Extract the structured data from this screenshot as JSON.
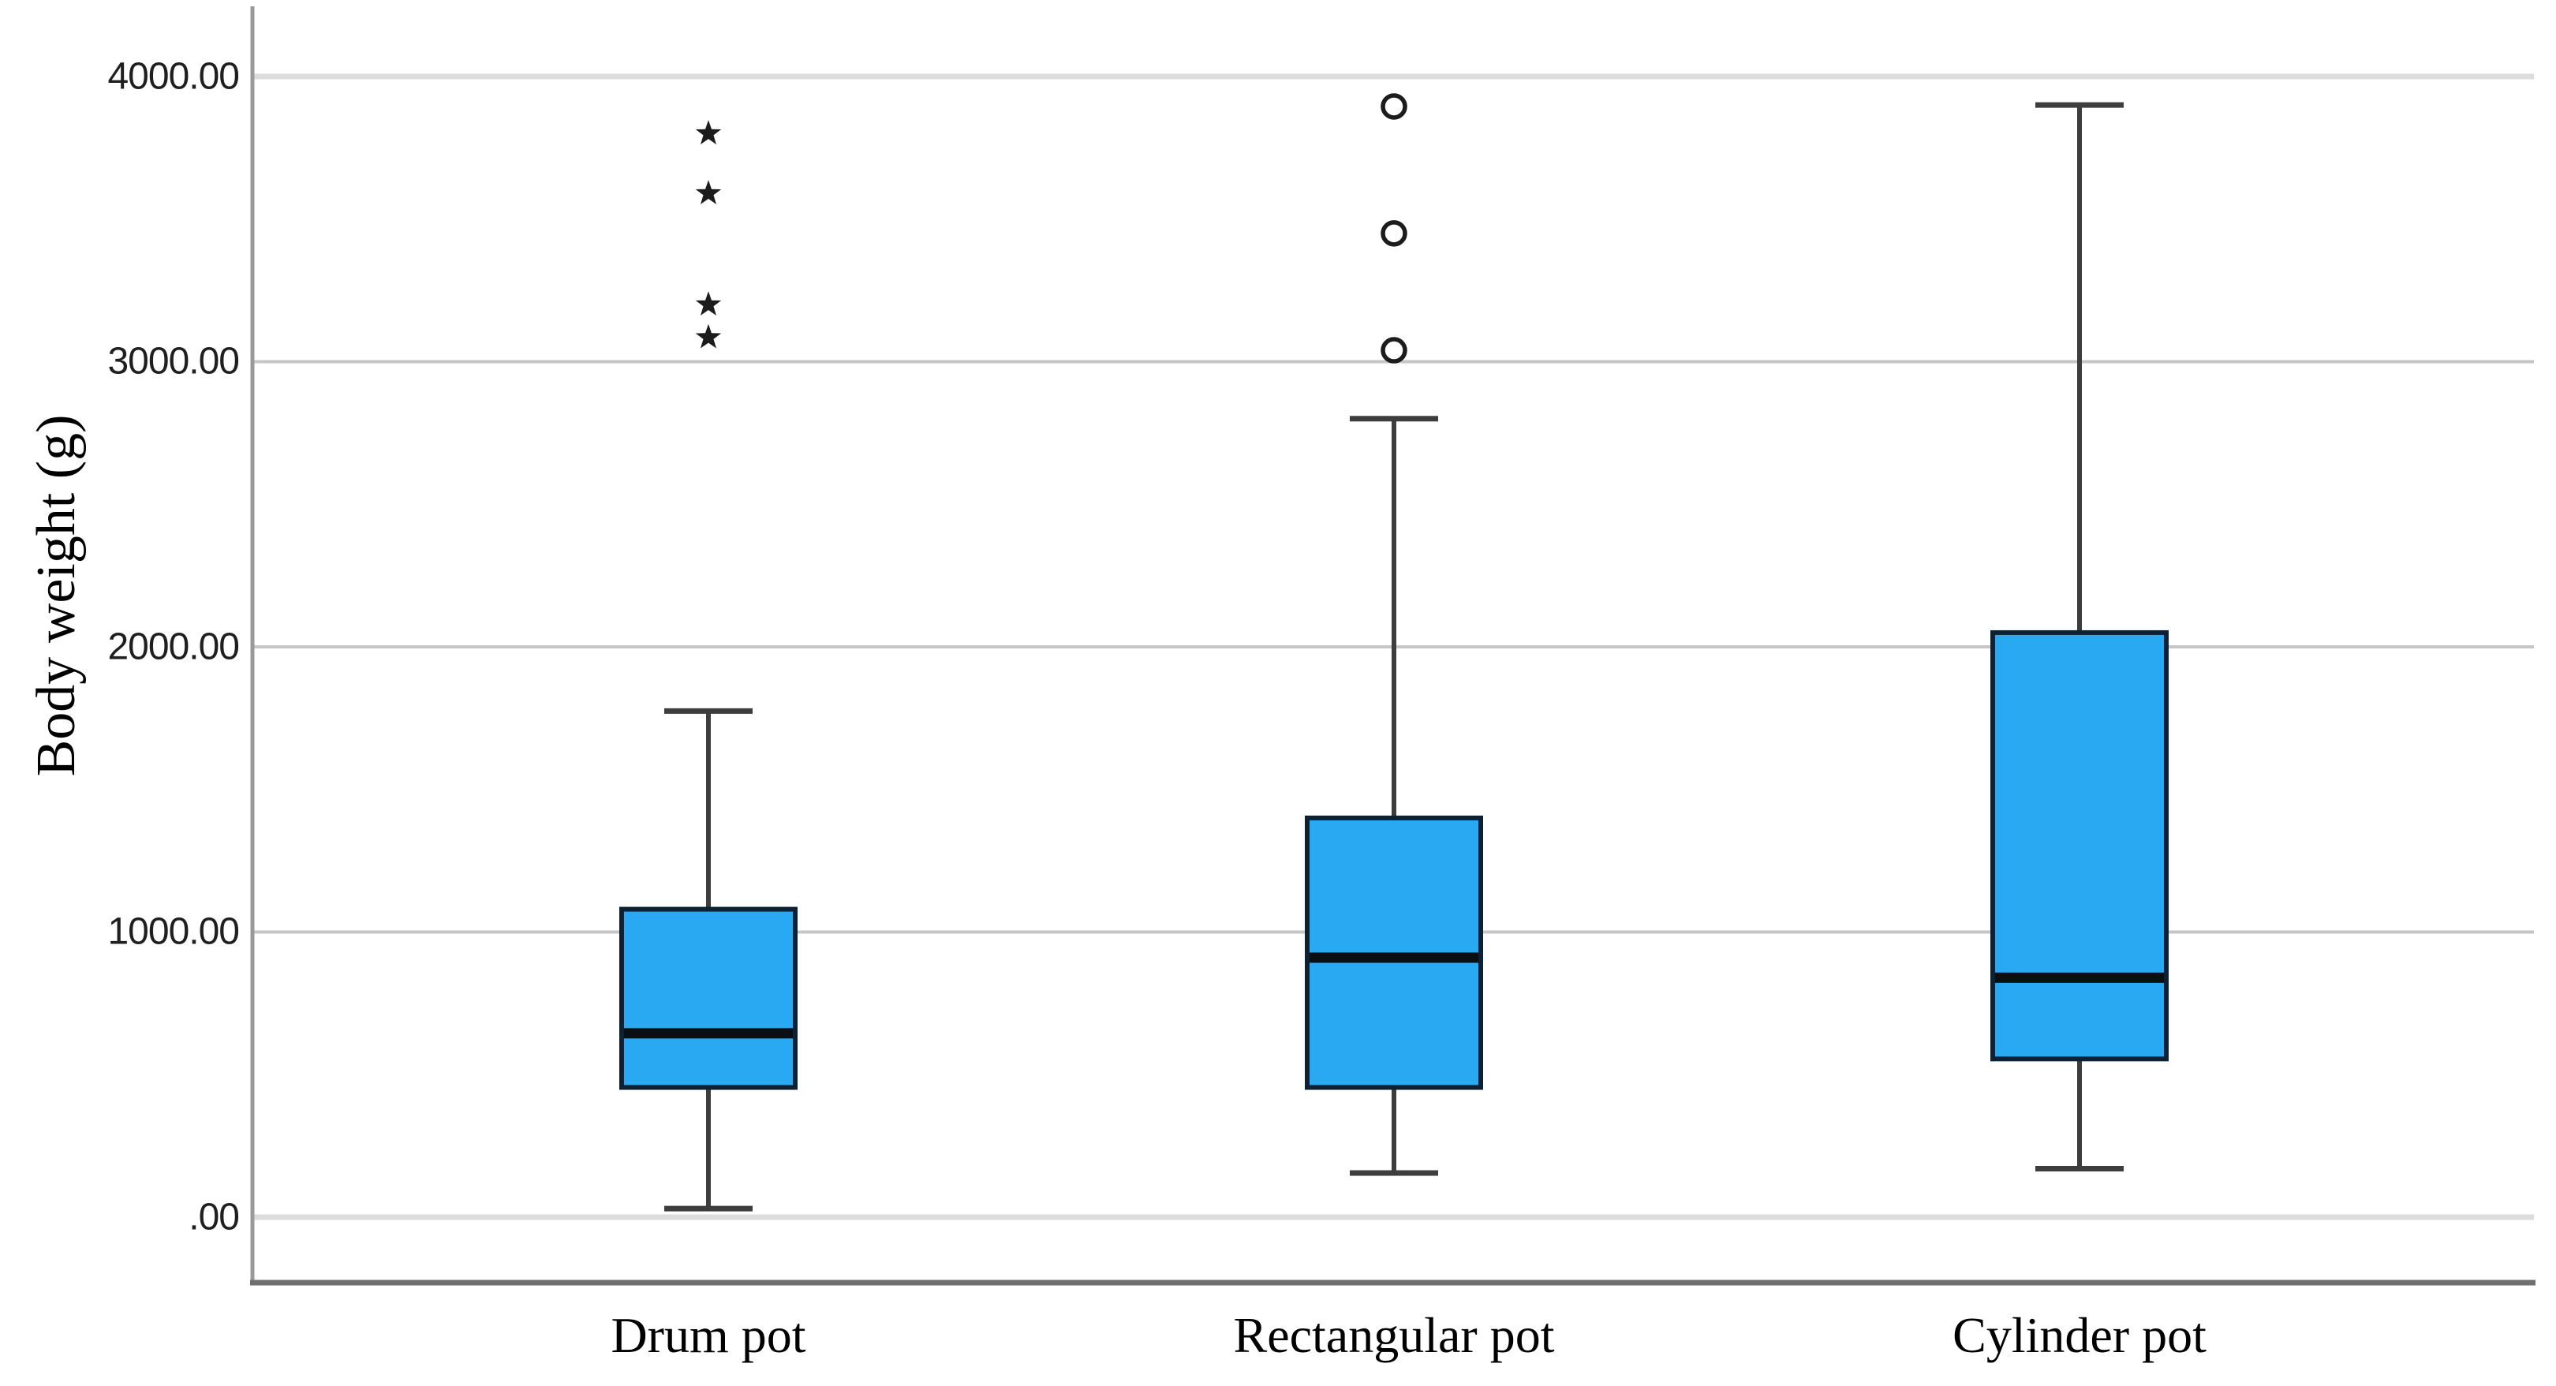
{
  "chart_data": {
    "type": "boxplot",
    "title": "",
    "ylabel": "Body weight (g)",
    "xlabel": "",
    "categories": [
      "Drum pot",
      "Rectangular pot",
      "Cylinder pot"
    ],
    "y_axis": {
      "tick_labels": [
        ".00",
        "1000.00",
        "2000.00",
        "3000.00",
        "4000.00"
      ],
      "tick_values": [
        0,
        1000,
        2000,
        3000,
        4000
      ],
      "ylim": [
        0,
        4000
      ],
      "grid": true
    },
    "series": [
      {
        "category": "Drum pot",
        "whisker_low": 30,
        "q1": 455,
        "median": 645,
        "q3": 1080,
        "whisker_high": 1775,
        "extreme_outliers": [
          3800,
          3590,
          3200,
          3085
        ],
        "mild_outliers": []
      },
      {
        "category": "Rectangular pot",
        "whisker_low": 155,
        "q1": 455,
        "median": 910,
        "q3": 1400,
        "whisker_high": 2800,
        "extreme_outliers": [],
        "mild_outliers": [
          3895,
          3450,
          3040
        ]
      },
      {
        "category": "Cylinder pot",
        "whisker_low": 170,
        "q1": 555,
        "median": 840,
        "q3": 2050,
        "whisker_high": 3900,
        "extreme_outliers": [],
        "mild_outliers": []
      }
    ],
    "markers": {
      "extreme_outlier": "asterisk-star-icon",
      "mild_outlier": "open-circle-icon"
    },
    "colors": {
      "box_fill": "#29a9f2",
      "box_border": "#0c2133",
      "median": "#0a0f14",
      "whisker": "#3d3d3d",
      "gridline": "#c6c6c6",
      "gridline_major": "#dcdcdc",
      "axis_spine": "#9a9a9a",
      "baseline": "#6f6f6f",
      "outlier_marker": "#1c1c1c",
      "text": "#000000"
    },
    "legend": null
  }
}
